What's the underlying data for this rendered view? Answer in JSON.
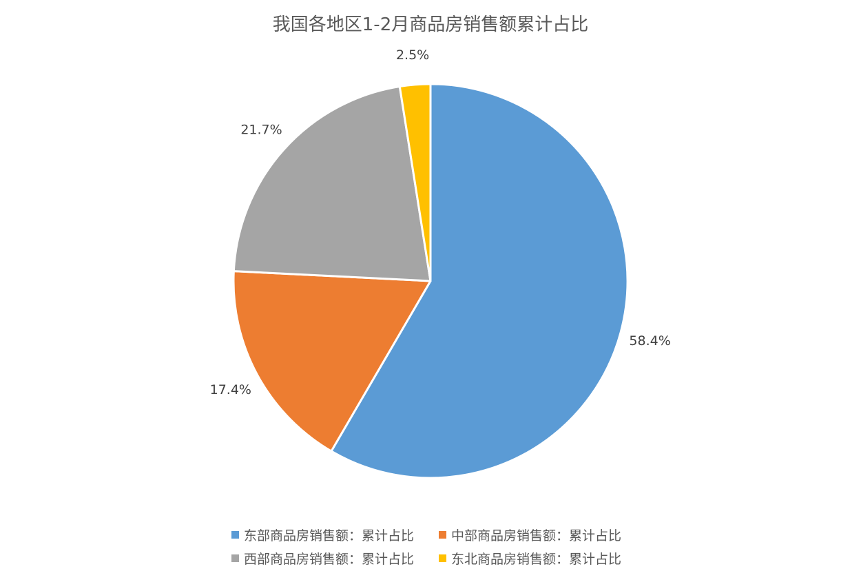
{
  "chart_data": {
    "type": "pie",
    "title": "我国各地区1-2月商品房销售额累计占比",
    "series": [
      {
        "name": "东部商品房销售额：累计占比",
        "value": 58.4,
        "label": "58.4%",
        "color": "#5B9BD5"
      },
      {
        "name": "中部商品房销售额：累计占比",
        "value": 17.4,
        "label": "17.4%",
        "color": "#ED7D31"
      },
      {
        "name": "西部商品房销售额：累计占比",
        "value": 21.7,
        "label": "21.7%",
        "color": "#A5A5A5"
      },
      {
        "name": "东北商品房销售额：累计占比",
        "value": 2.5,
        "label": "2.5%",
        "color": "#FFC000"
      }
    ],
    "start_angle": "12 o'clock",
    "direction": "clockwise",
    "legend_position": "bottom",
    "data_labels": "outside"
  }
}
